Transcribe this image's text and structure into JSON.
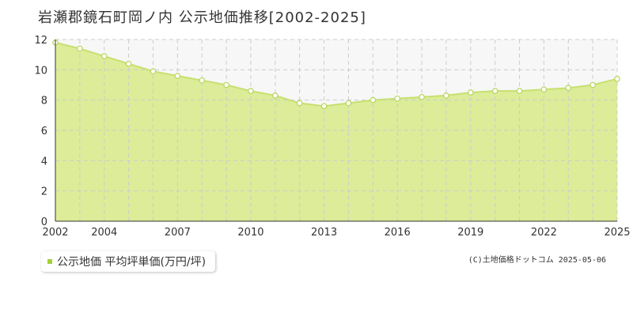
{
  "title": "岩瀬郡鏡石町岡ノ内 公示地価推移[2002-2025]",
  "legend": {
    "label": "公示地価 平均坪単価(万円/坪)"
  },
  "copyright": "(C)土地価格ドットコム 2025-05-06",
  "colors": {
    "fill": "#dcec98",
    "line": "#c8e070",
    "marker_stroke": "#b6d65a",
    "legend": "#a4d13a"
  },
  "chart_data": {
    "type": "area",
    "x": [
      2002,
      2003,
      2004,
      2005,
      2006,
      2007,
      2008,
      2009,
      2010,
      2011,
      2012,
      2013,
      2014,
      2015,
      2016,
      2017,
      2018,
      2019,
      2020,
      2021,
      2022,
      2023,
      2024,
      2025
    ],
    "series": [
      {
        "name": "公示地価 平均坪単価(万円/坪)",
        "values": [
          11.8,
          11.4,
          10.9,
          10.4,
          9.9,
          9.6,
          9.3,
          9.0,
          8.6,
          8.3,
          7.8,
          7.6,
          7.8,
          8.0,
          8.1,
          8.2,
          8.3,
          8.5,
          8.6,
          8.6,
          8.7,
          8.8,
          9.0,
          9.4
        ]
      }
    ],
    "xticks": [
      "2002",
      "2004",
      "2007",
      "2010",
      "2013",
      "2016",
      "2019",
      "2022",
      "2025"
    ],
    "yticks": [
      "0",
      "2",
      "4",
      "6",
      "8",
      "10",
      "12"
    ],
    "xlim": [
      2002,
      2025
    ],
    "ylim": [
      0,
      12
    ],
    "grid": true,
    "legend_position": "bottom-left"
  }
}
